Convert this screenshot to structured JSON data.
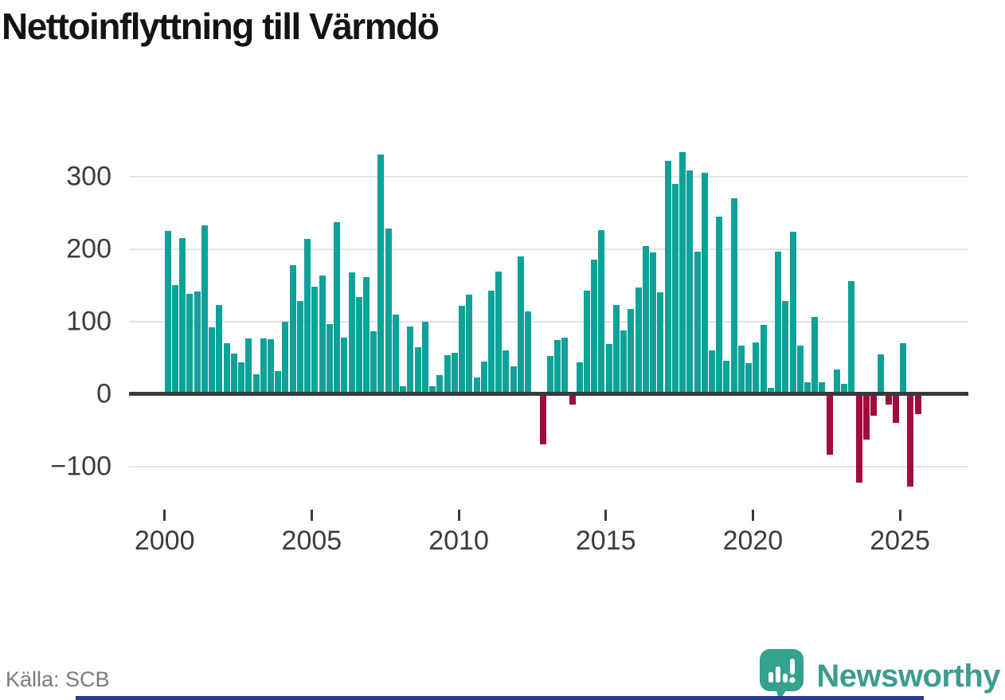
{
  "title": "Nettoinflyttning till Värmdö",
  "source": "Källa: SCB",
  "branding": {
    "name": "Newsworthy",
    "logo_icon": "bar-chart-speech-bubble-icon"
  },
  "colors": {
    "positive": "#0da299",
    "negative": "#a00c3e",
    "axis": "#3a3a3a",
    "grid": "#e4e4e4",
    "title_text": "#141414",
    "tick_label": "#3c3c3c",
    "source_text": "#7b7b7b",
    "brand_teal": "#3d9c90",
    "bottom_strip": "#2a3b94"
  },
  "chart_data": {
    "type": "bar",
    "title": "Nettoinflyttning till Värmdö",
    "xlabel": "",
    "ylabel": "",
    "frequency": "quarterly",
    "x_range": [
      "2000Q1",
      "2025Q3"
    ],
    "ylim": [
      -150,
      360
    ],
    "grid": true,
    "legend": false,
    "yticks": [
      300,
      200,
      100,
      0,
      -100
    ],
    "xticks": [
      2000,
      2005,
      2010,
      2015,
      2020,
      2025
    ],
    "x_labels": [
      "2000Q1",
      "2000Q2",
      "2000Q3",
      "2000Q4",
      "2001Q1",
      "2001Q2",
      "2001Q3",
      "2001Q4",
      "2002Q1",
      "2002Q2",
      "2002Q3",
      "2002Q4",
      "2003Q1",
      "2003Q2",
      "2003Q3",
      "2003Q4",
      "2004Q1",
      "2004Q2",
      "2004Q3",
      "2004Q4",
      "2005Q1",
      "2005Q2",
      "2005Q3",
      "2005Q4",
      "2006Q1",
      "2006Q2",
      "2006Q3",
      "2006Q4",
      "2007Q1",
      "2007Q2",
      "2007Q3",
      "2007Q4",
      "2008Q1",
      "2008Q2",
      "2008Q3",
      "2008Q4",
      "2009Q1",
      "2009Q2",
      "2009Q3",
      "2009Q4",
      "2010Q1",
      "2010Q2",
      "2010Q3",
      "2010Q4",
      "2011Q1",
      "2011Q2",
      "2011Q3",
      "2011Q4",
      "2012Q1",
      "2012Q2",
      "2012Q3",
      "2012Q4",
      "2013Q1",
      "2013Q2",
      "2013Q3",
      "2013Q4",
      "2014Q1",
      "2014Q2",
      "2014Q3",
      "2014Q4",
      "2015Q1",
      "2015Q2",
      "2015Q3",
      "2015Q4",
      "2016Q1",
      "2016Q2",
      "2016Q3",
      "2016Q4",
      "2017Q1",
      "2017Q2",
      "2017Q3",
      "2017Q4",
      "2018Q1",
      "2018Q2",
      "2018Q3",
      "2018Q4",
      "2019Q1",
      "2019Q2",
      "2019Q3",
      "2019Q4",
      "2020Q1",
      "2020Q2",
      "2020Q3",
      "2020Q4",
      "2021Q1",
      "2021Q2",
      "2021Q3",
      "2021Q4",
      "2022Q1",
      "2022Q2",
      "2022Q3",
      "2022Q4",
      "2023Q1",
      "2023Q2",
      "2023Q3",
      "2023Q4",
      "2024Q1",
      "2024Q2",
      "2024Q3",
      "2024Q4",
      "2025Q1",
      "2025Q2",
      "2025Q3"
    ],
    "values": [
      225,
      150,
      215,
      138,
      141,
      232,
      92,
      122,
      70,
      55,
      43,
      76,
      27,
      76,
      75,
      31,
      100,
      178,
      128,
      214,
      148,
      163,
      96,
      237,
      78,
      168,
      134,
      161,
      86,
      330,
      228,
      109,
      10,
      93,
      64,
      100,
      10,
      26,
      53,
      57,
      121,
      137,
      23,
      44,
      142,
      169,
      60,
      38,
      190,
      114,
      2,
      -70,
      52,
      74,
      78,
      -15,
      43,
      142,
      185,
      226,
      69,
      123,
      87,
      117,
      147,
      204,
      195,
      140,
      321,
      290,
      334,
      308,
      196,
      305,
      60,
      245,
      46,
      270,
      67,
      42,
      71,
      95,
      8,
      196,
      128,
      224,
      67,
      16,
      106,
      16,
      -84,
      33,
      14,
      155,
      -122,
      -63,
      -30,
      54,
      -15,
      -40,
      70,
      -128,
      -28
    ]
  }
}
